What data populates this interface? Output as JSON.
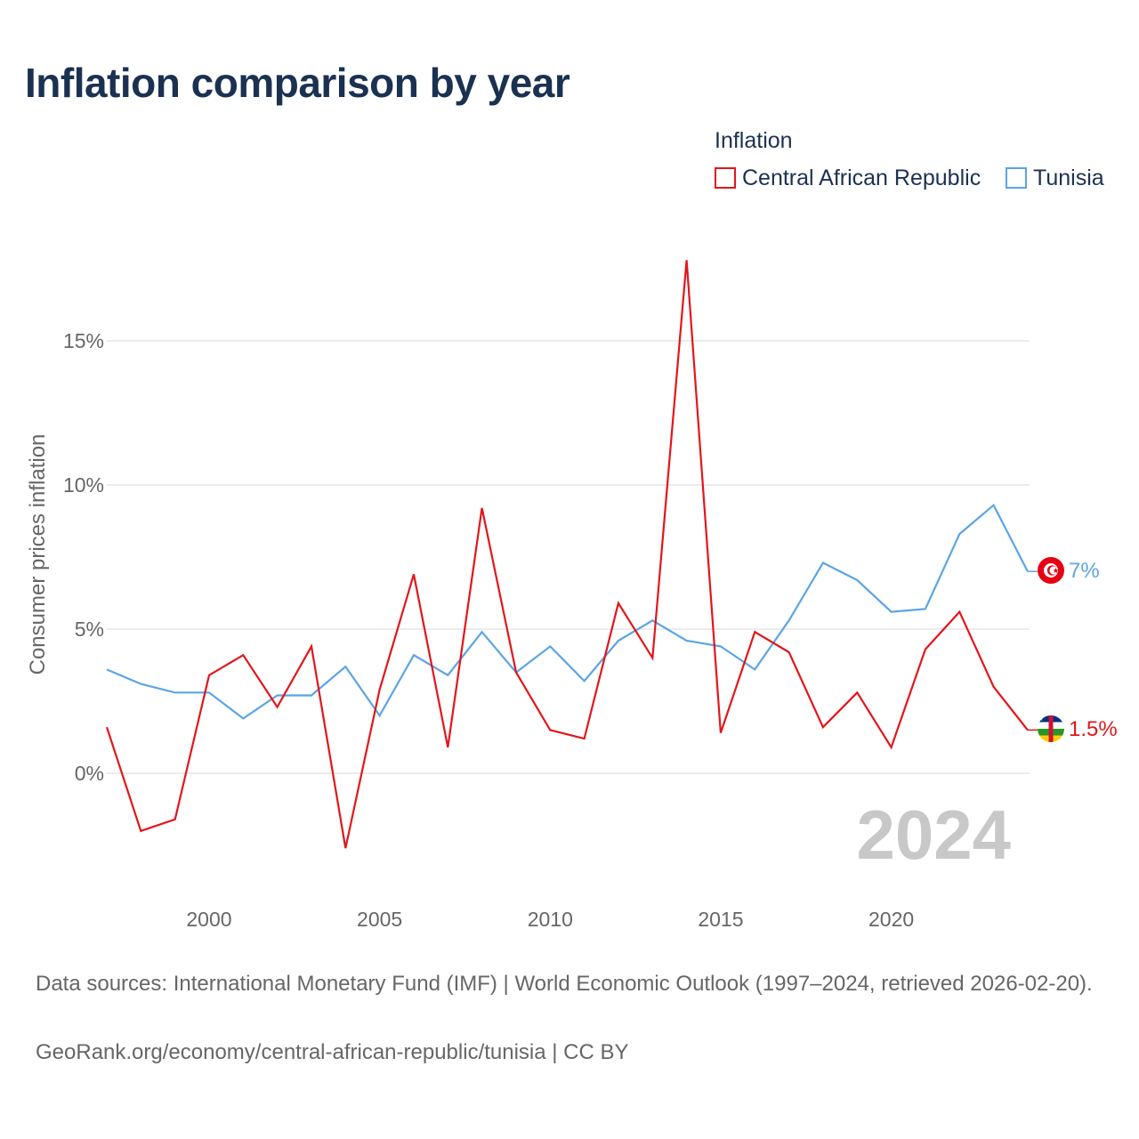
{
  "chart_data": {
    "type": "line",
    "title": "Inflation comparison by year",
    "legend_title": "Inflation",
    "ylabel": "Consumer prices inflation",
    "xlabel": "",
    "x": [
      1997,
      1998,
      1999,
      2000,
      2001,
      2002,
      2003,
      2004,
      2005,
      2006,
      2007,
      2008,
      2009,
      2010,
      2011,
      2012,
      2013,
      2014,
      2015,
      2016,
      2017,
      2018,
      2019,
      2020,
      2021,
      2022,
      2023,
      2024
    ],
    "xlim": [
      1997,
      2024
    ],
    "ylim": [
      -4.2,
      18.5
    ],
    "x_ticks": [
      2000,
      2005,
      2010,
      2015,
      2020
    ],
    "x_tick_labels": [
      "2000",
      "2005",
      "2010",
      "2015",
      "2020"
    ],
    "y_ticks": [
      0,
      5,
      10,
      15
    ],
    "y_tick_labels": [
      "0%",
      "5%",
      "10%",
      "15%"
    ],
    "year_label": "2024",
    "series": [
      {
        "name": "Central African Republic",
        "color": "#e3151a",
        "flag": "central-african-republic-flag",
        "end_label": "1.5%",
        "values": [
          1.6,
          -2.0,
          -1.6,
          3.4,
          4.1,
          2.3,
          4.4,
          -2.6,
          2.9,
          6.9,
          0.9,
          9.2,
          3.5,
          1.5,
          1.2,
          5.9,
          4.0,
          17.8,
          1.4,
          4.9,
          4.2,
          1.6,
          2.8,
          0.9,
          4.3,
          5.6,
          3.0,
          1.5
        ]
      },
      {
        "name": "Tunisia",
        "color": "#5ba4e6",
        "flag": "tunisia-flag",
        "end_label": "7%",
        "values": [
          3.6,
          3.1,
          2.8,
          2.8,
          1.9,
          2.7,
          2.7,
          3.7,
          2.0,
          4.1,
          3.4,
          4.9,
          3.5,
          4.4,
          3.2,
          4.6,
          5.3,
          4.6,
          4.4,
          3.6,
          5.3,
          7.3,
          6.7,
          5.6,
          5.7,
          8.3,
          9.3,
          7.0
        ]
      }
    ]
  },
  "footer": {
    "sources": "Data sources: International Monetary Fund (IMF) | World Economic Outlook (1997–2024, retrieved 2026-02-20).",
    "credit": "GeoRank.org/economy/central-african-republic/tunisia | CC BY"
  }
}
